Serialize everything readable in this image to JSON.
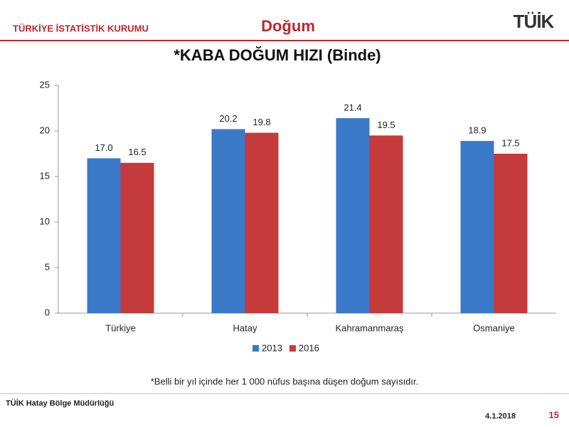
{
  "header": {
    "org": "TÜRKİYE İSTATİSTİK KURUMU",
    "section": "Doğum",
    "logo": "TÜİK"
  },
  "chart_data": {
    "type": "bar",
    "title": "*KABA DOĞUM HIZI (Binde)",
    "categories": [
      "Türkiye",
      "Hatay",
      "Kahramanmaraş",
      "Osmaniye"
    ],
    "series": [
      {
        "name": "2013",
        "color": "#3a78c8",
        "values": [
          17.0,
          20.2,
          21.4,
          18.9
        ],
        "value_labels": [
          "17.0",
          "20.2",
          "21.4",
          "18.9"
        ]
      },
      {
        "name": "2016",
        "color": "#c53a3a",
        "values": [
          16.5,
          19.8,
          19.5,
          17.5
        ],
        "value_labels": [
          "16.5",
          "19.8",
          "19.5",
          "17.5"
        ]
      }
    ],
    "ylim": [
      0,
      25
    ],
    "yticks": [
      0,
      5,
      10,
      15,
      20,
      25
    ],
    "grid": false,
    "legend": "bottom",
    "note": "*Belli bir yıl içinde her 1 000 nüfus başına düşen doğum sayısıdır."
  },
  "footer": {
    "office": "TÜİK Hatay Bölge Müdürlüğü",
    "date": "4.1.2018",
    "page": "15"
  }
}
